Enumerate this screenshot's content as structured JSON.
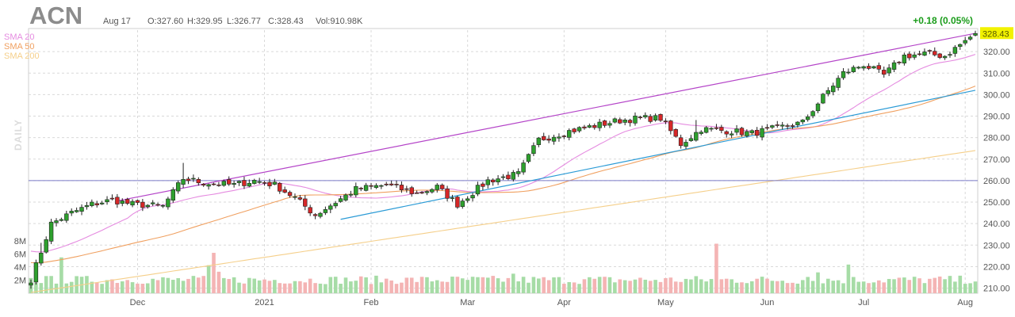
{
  "header": {
    "ticker": "ACN",
    "date": "Aug 17",
    "open": "O:327.60",
    "high": "H:329.95",
    "low": "L:326.77",
    "close": "C:328.43",
    "volume": "Vol:910.98K",
    "change": "+0.18 (0.05%)",
    "period_label": "DAILY"
  },
  "legend": [
    {
      "name": "SMA 20",
      "color": "#e58be0"
    },
    {
      "name": "SMA 50",
      "color": "#f0a060"
    },
    {
      "name": "SMA 200",
      "color": "#f5cf8a"
    }
  ],
  "colors": {
    "up": "#2ea02e",
    "down": "#d62728",
    "vol_up": "#a6dca6",
    "vol_down": "#f4b4b4",
    "channel_upper": "#b444c8",
    "channel_lower": "#2b9bd6",
    "hline": "#7b7bc8",
    "last_badge": "#f2f200"
  },
  "chart_data": {
    "type": "candlestick",
    "ylim": [
      208,
      330
    ],
    "yticks": [
      "210.00",
      "220.00",
      "230.00",
      "240.00",
      "250.00",
      "260.00",
      "270.00",
      "280.00",
      "290.00",
      "300.00",
      "310.00",
      "320.00"
    ],
    "xticks": [
      "Dec",
      "2021",
      "Feb",
      "Mar",
      "Apr",
      "May",
      "Jun",
      "Jul",
      "Aug"
    ],
    "volume_ticks": [
      "2M",
      "4M",
      "6M",
      "8M"
    ],
    "volume_max": 9,
    "last_price": "328.43",
    "horizontal_line": 260,
    "channel": [
      [
        0,
        250.5
      ],
      [
        186,
        328.5
      ]
    ],
    "support_line": [
      [
        61,
        242
      ],
      [
        112,
        262
      ],
      [
        186,
        302
      ]
    ],
    "anchors": [
      [
        0,
        214
      ],
      [
        4,
        240
      ],
      [
        8,
        245
      ],
      [
        12,
        249
      ],
      [
        16,
        251
      ],
      [
        20,
        249
      ],
      [
        26,
        248
      ],
      [
        30,
        261
      ],
      [
        34,
        259
      ],
      [
        40,
        258
      ],
      [
        44,
        260
      ],
      [
        48,
        258
      ],
      [
        52,
        252
      ],
      [
        56,
        244
      ],
      [
        62,
        253
      ],
      [
        64,
        256
      ],
      [
        70,
        258
      ],
      [
        76,
        254
      ],
      [
        80,
        257
      ],
      [
        84,
        249
      ],
      [
        90,
        260
      ],
      [
        96,
        263
      ],
      [
        100,
        279
      ],
      [
        106,
        283
      ],
      [
        112,
        286
      ],
      [
        116,
        288
      ],
      [
        120,
        289
      ],
      [
        124,
        289
      ],
      [
        128,
        277
      ],
      [
        132,
        284
      ],
      [
        138,
        283
      ],
      [
        142,
        282
      ],
      [
        148,
        285
      ],
      [
        152,
        287
      ],
      [
        156,
        299
      ],
      [
        160,
        310
      ],
      [
        164,
        314
      ],
      [
        168,
        309
      ],
      [
        172,
        318
      ],
      [
        176,
        319
      ],
      [
        180,
        318
      ],
      [
        184,
        325
      ],
      [
        186,
        328.43
      ]
    ],
    "vol_spikes": [
      [
        6,
        5.5
      ],
      [
        35,
        4.3
      ],
      [
        36,
        6.2
      ],
      [
        37,
        3.3
      ],
      [
        95,
        3.0
      ],
      [
        135,
        7.6
      ],
      [
        155,
        3.2
      ],
      [
        161,
        4.4
      ],
      [
        153,
        2.5
      ]
    ],
    "sma_keys": [
      "sma20",
      "sma50",
      "sma200"
    ]
  }
}
